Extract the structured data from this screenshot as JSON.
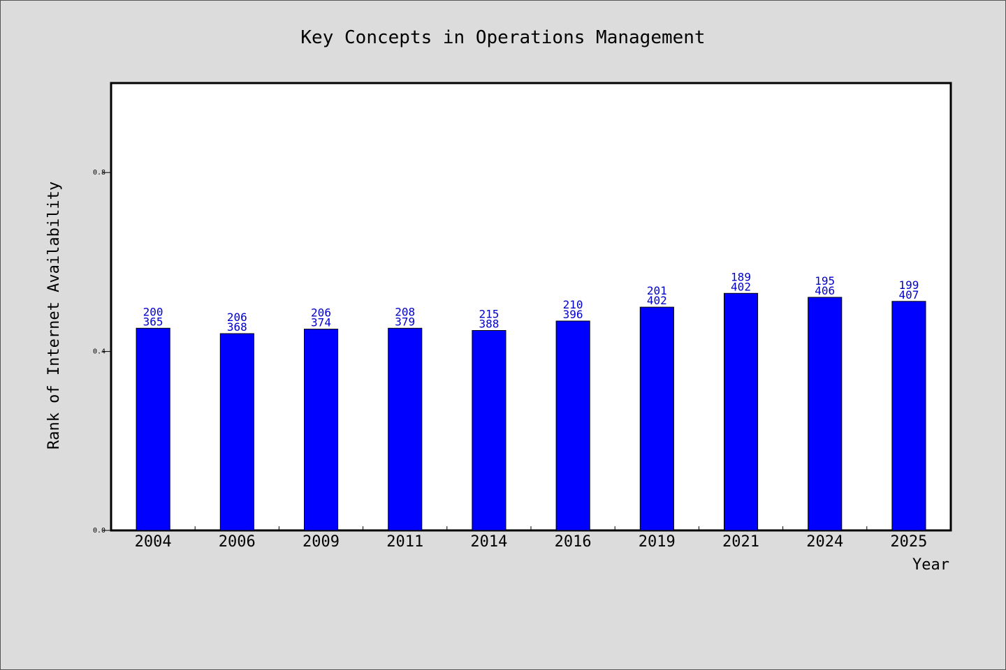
{
  "chart_data": {
    "type": "bar",
    "title": "Key Concepts in Operations Management",
    "xlabel": "Year",
    "ylabel": "Rank of Internet Availability",
    "ylim": [
      0.0,
      1.0
    ],
    "yticks": [
      "0.0",
      "0.4",
      "0.8"
    ],
    "ytick_values": [
      0.0,
      0.4,
      0.8
    ],
    "categories": [
      "2004",
      "2006",
      "2009",
      "2011",
      "2014",
      "2016",
      "2019",
      "2021",
      "2024",
      "2025"
    ],
    "values": [
      0.452,
      0.44,
      0.45,
      0.452,
      0.447,
      0.468,
      0.499,
      0.53,
      0.521,
      0.512
    ],
    "data_labels": [
      [
        "200",
        "365"
      ],
      [
        "206",
        "368"
      ],
      [
        "206",
        "374"
      ],
      [
        "208",
        "379"
      ],
      [
        "215",
        "388"
      ],
      [
        "210",
        "396"
      ],
      [
        "201",
        "402"
      ],
      [
        "189",
        "402"
      ],
      [
        "195",
        "406"
      ],
      [
        "199",
        "407"
      ]
    ],
    "grid": false,
    "colors": {
      "bar": "#0000ff",
      "label": "#0000cc",
      "plot_bg": "#ffffff",
      "figure_bg": "#dcdcdc"
    }
  }
}
